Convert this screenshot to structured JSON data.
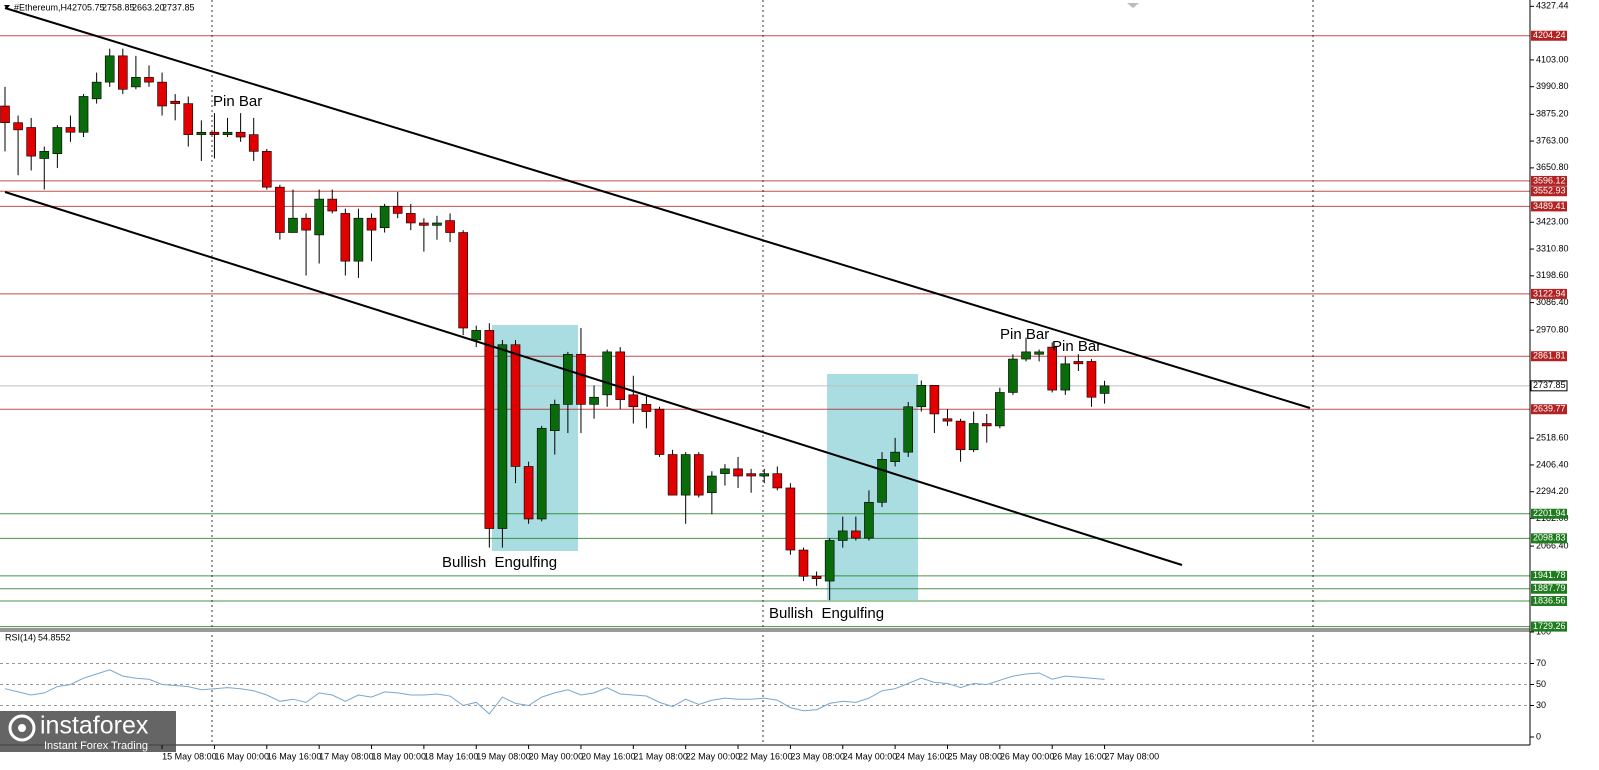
{
  "chart_data": {
    "type": "candlestick",
    "symbol": "#Ethereum,H4",
    "header_labels": [
      "2705.75",
      "2758.85",
      "2663.20",
      "2737.85"
    ],
    "categories": [
      null,
      null,
      null,
      null,
      null,
      null,
      null,
      null,
      null,
      null,
      null,
      null,
      "15 May 08:00",
      null,
      null,
      null,
      "16 May 00:00",
      null,
      null,
      null,
      "16 May 16:00",
      null,
      null,
      null,
      "17 May 08:00",
      null,
      null,
      null,
      "18 May 00:00",
      null,
      null,
      null,
      "18 May 16:00",
      null,
      null,
      null,
      "19 May 08:00",
      null,
      null,
      null,
      "20 May 00:00",
      null,
      null,
      null,
      "20 May 16:00",
      null,
      null,
      null,
      "21 May 08:00",
      null,
      null,
      null,
      "22 May 00:00",
      null,
      null,
      null,
      "22 May 16:00",
      null,
      null,
      null,
      "23 May 08:00",
      null,
      null,
      null,
      "24 May 00:00",
      null,
      null,
      null,
      "24 May 16:00",
      null,
      null,
      null,
      "25 May 08:00",
      null,
      null,
      null,
      "26 May 00:00",
      null,
      null,
      null,
      "26 May 16:00",
      null,
      null,
      null,
      "27 May 08:00"
    ],
    "candles": {
      "open": [
        3910,
        3840,
        3820,
        3690,
        3710,
        3820,
        3800,
        3940,
        4010,
        4120,
        3990,
        4030,
        4010,
        3930,
        3920,
        3790,
        3800,
        3790,
        3800,
        3790,
        3720,
        3570,
        3380,
        3440,
        3370,
        3520,
        3460,
        3260,
        3440,
        3400,
        3490,
        3460,
        3420,
        3410,
        3430,
        3380,
        2930,
        2970,
        2140,
        2910,
        2400,
        2180,
        2550,
        2660,
        2870,
        2660,
        2700,
        2880,
        2700,
        2660,
        2640,
        2450,
        2280,
        2450,
        2290,
        2370,
        2390,
        2370,
        2360,
        2370,
        2310,
        2050,
        1940,
        1920,
        2090,
        2130,
        2100,
        2250,
        2420,
        2460,
        2650,
        2740,
        2600,
        2590,
        2470,
        2580,
        2570,
        2710,
        2850,
        2870,
        2900,
        2720,
        2840,
        2840,
        2705.75
      ],
      "high": [
        3990,
        3870,
        3860,
        3740,
        3830,
        3870,
        3960,
        4050,
        4150,
        4150,
        4120,
        4080,
        4050,
        3960,
        3950,
        3850,
        3880,
        3860,
        3880,
        3860,
        3730,
        3580,
        3560,
        3460,
        3560,
        3560,
        3480,
        3480,
        3460,
        3500,
        3550,
        3500,
        3440,
        3450,
        3460,
        3390,
        2990,
        3000,
        2930,
        2930,
        2420,
        2570,
        2680,
        2880,
        2980,
        2740,
        2890,
        2900,
        2780,
        2700,
        2650,
        2470,
        2460,
        2460,
        2380,
        2410,
        2440,
        2390,
        2390,
        2400,
        2330,
        2060,
        1960,
        2100,
        2190,
        2190,
        2300,
        2460,
        2520,
        2670,
        2760,
        2740,
        2640,
        2600,
        2630,
        2620,
        2730,
        2870,
        2940,
        2890,
        2920,
        2860,
        2870,
        2850,
        2758.85
      ],
      "low": [
        3720,
        3620,
        3640,
        3560,
        3650,
        3760,
        3780,
        3920,
        3990,
        3960,
        3980,
        3990,
        3870,
        3850,
        3740,
        3680,
        3690,
        3780,
        3760,
        3680,
        3560,
        3350,
        3380,
        3200,
        3250,
        3460,
        3200,
        3190,
        3260,
        3380,
        3440,
        3390,
        3300,
        3350,
        3340,
        2950,
        2900,
        2060,
        2060,
        2330,
        2160,
        2170,
        2450,
        2540,
        2540,
        2600,
        2650,
        2640,
        2580,
        2560,
        2440,
        2280,
        2160,
        2270,
        2200,
        2320,
        2310,
        2290,
        2330,
        2300,
        2030,
        1920,
        1900,
        1840,
        2060,
        2090,
        2090,
        2230,
        2400,
        2440,
        2630,
        2540,
        2570,
        2420,
        2460,
        2500,
        2560,
        2700,
        2840,
        2840,
        2710,
        2700,
        2800,
        2650,
        2663.2
      ],
      "close": [
        3840,
        3810,
        3700,
        3720,
        3820,
        3800,
        3950,
        4010,
        4120,
        3980,
        4030,
        4010,
        3910,
        3920,
        3790,
        3800,
        3790,
        3800,
        3780,
        3720,
        3570,
        3380,
        3440,
        3390,
        3520,
        3470,
        3260,
        3440,
        3390,
        3490,
        3460,
        3420,
        3410,
        3420,
        3380,
        2980,
        2970,
        2140,
        2910,
        2400,
        2180,
        2560,
        2660,
        2870,
        2660,
        2690,
        2880,
        2680,
        2650,
        2630,
        2450,
        2280,
        2450,
        2280,
        2360,
        2390,
        2360,
        2360,
        2370,
        2310,
        2050,
        1940,
        1930,
        2090,
        2130,
        2100,
        2250,
        2430,
        2460,
        2650,
        2740,
        2620,
        2590,
        2470,
        2580,
        2570,
        2710,
        2850,
        2880,
        2880,
        2720,
        2830,
        2830,
        2690,
        2737.85
      ]
    },
    "up_color": "#0a6b0a",
    "down_color": "#e00000",
    "ylim": [
      1715,
      4354
    ],
    "yticks": [
      4327.44,
      {
        "value": 4103,
        "label": "4103.00"
      },
      {
        "value": 3990.8,
        "label": "3990.80"
      },
      {
        "value": 3875.2,
        "label": "3875.20"
      },
      {
        "value": 3763,
        "label": "3763.00"
      },
      {
        "value": 3650.8,
        "label": "3650.80"
      },
      {
        "value": 3423,
        "label": "3423.00"
      },
      {
        "value": 3310.8,
        "label": "3310.80"
      },
      {
        "value": 3198.6,
        "label": "3198.60"
      },
      {
        "value": 3086.4,
        "label": "3086.40"
      },
      {
        "value": 2970.8,
        "label": "2970.80"
      },
      {
        "value": 2518.6,
        "label": "2518.60"
      },
      {
        "value": 2406.4,
        "label": "2406.40"
      },
      {
        "value": 2294.2,
        "label": "2294.20"
      },
      {
        "value": 2182,
        "label": "2182.00"
      },
      {
        "value": 2066.4,
        "label": "2066.40"
      }
    ],
    "levels": [
      {
        "value": 4204.24,
        "color": "#b22222"
      },
      {
        "value": 3596.12,
        "color": "#b22222"
      },
      {
        "value": 3552.93,
        "color": "#b22222"
      },
      {
        "value": 3489.41,
        "color": "#b22222"
      },
      {
        "value": 3122.94,
        "color": "#b22222"
      },
      {
        "value": 2861.81,
        "color": "#b22222"
      },
      {
        "value": 2639.77,
        "color": "#b22222"
      },
      {
        "value": 2201.94,
        "color": "#1e7b1e"
      },
      {
        "value": 2098.83,
        "color": "#1e7b1e"
      },
      {
        "value": 1941.78,
        "color": "#1e7b1e"
      },
      {
        "value": 1887.79,
        "color": "#1e7b1e"
      },
      {
        "value": 1836.56,
        "color": "#1e7b1e"
      },
      {
        "value": 1729.26,
        "color": "#1e7b1e"
      }
    ],
    "annotations": [
      "Pin Bar",
      "Pin Bar",
      "Pin Bar",
      "Bullish  Engulfing",
      "Bullish  Engulfing"
    ],
    "rsi": {
      "name": "RSI(14)",
      "color": "#7aa6cf",
      "ylim": [
        0,
        100
      ],
      "yticks": [
        100,
        70,
        50,
        30,
        0
      ],
      "values": [
        46,
        43,
        40,
        42,
        48,
        50,
        56,
        60,
        64,
        58,
        56,
        55,
        50,
        49,
        48,
        45,
        46,
        47,
        46,
        44,
        40,
        34,
        36,
        33,
        42,
        40,
        34,
        40,
        38,
        43,
        42,
        40,
        40,
        41,
        39,
        30,
        33,
        22,
        38,
        32,
        30,
        38,
        42,
        45,
        40,
        42,
        47,
        41,
        40,
        39,
        33,
        29,
        36,
        31,
        35,
        37,
        36,
        36,
        37,
        35,
        28,
        25,
        26,
        32,
        34,
        33,
        37,
        44,
        46,
        51,
        56,
        52,
        51,
        47,
        51,
        50,
        54,
        58,
        60,
        61,
        55,
        58,
        57,
        56,
        54.8552
      ]
    }
  },
  "watermark": {
    "brand": "instaforex",
    "tagline": "Instant Forex Trading"
  }
}
